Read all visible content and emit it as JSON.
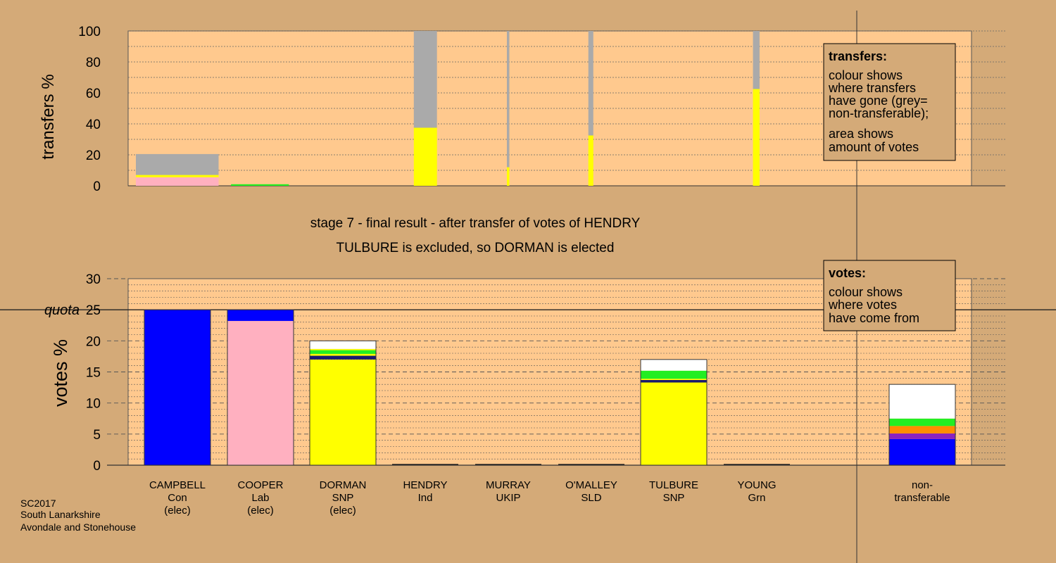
{
  "colors": {
    "background": "#d4aa78",
    "plot_background": "#ffc98e",
    "Con": "#0000ff",
    "Lab": "#ffb0c0",
    "SNP": "#ffff00",
    "Ind": "#1a1a6e",
    "Grn": "#22ee22",
    "UKIP": "#8b22c0",
    "SLD": "#ff8c00",
    "non_transferable": "#aaaaaa",
    "unknown": "#ffffff"
  },
  "titles": {
    "stage": "stage 7 - final result - after transfer of votes of HENDRY",
    "result": "TULBURE is excluded, so DORMAN is elected"
  },
  "legend_transfers": {
    "title": "transfers:",
    "lines": [
      "colour shows",
      "where transfers",
      "have gone (grey=",
      "non-transferable);",
      "area shows",
      "amount of votes"
    ]
  },
  "legend_votes": {
    "title": "votes:",
    "lines": [
      "colour shows",
      "where votes",
      "have come from"
    ]
  },
  "footer": {
    "line1": "SC2017",
    "line2": "South Lanarkshire",
    "line3": "Avondale and Stonehouse"
  },
  "quota_label": "quota",
  "candidates": [
    {
      "name": "CAMPBELL",
      "party": "Con",
      "status": "(elec)"
    },
    {
      "name": "COOPER",
      "party": "Lab",
      "status": "(elec)"
    },
    {
      "name": "DORMAN",
      "party": "SNP",
      "status": "(elec)"
    },
    {
      "name": "HENDRY",
      "party": "Ind",
      "status": ""
    },
    {
      "name": "MURRAY",
      "party": "UKIP",
      "status": ""
    },
    {
      "name": "O'MALLEY",
      "party": "SLD",
      "status": ""
    },
    {
      "name": "TULBURE",
      "party": "SNP",
      "status": ""
    },
    {
      "name": "YOUNG",
      "party": "Grn",
      "status": ""
    },
    {
      "name": "non-",
      "party": "transferable",
      "status": ""
    }
  ],
  "chart_data": [
    {
      "type": "bar",
      "ylabel": "transfers %",
      "ylim": [
        0,
        100
      ],
      "yticks": [
        0,
        20,
        40,
        60,
        80,
        100
      ],
      "grid": true,
      "legend": "top-right",
      "bars": [
        {
          "center": 0.5,
          "width": 1.0,
          "segments": [
            {
              "key": "Lab",
              "value": 5.5
            },
            {
              "key": "SNP",
              "value": 1.5
            },
            {
              "key": "non_transferable",
              "value": 13.5
            }
          ]
        },
        {
          "center": 1.5,
          "width": 0.7,
          "segments": [
            {
              "key": "Grn",
              "value": 1.0
            }
          ]
        },
        {
          "center": 3.5,
          "width": 0.28,
          "segments": [
            {
              "key": "SNP",
              "value": 37.5
            },
            {
              "key": "non_transferable",
              "value": 62.5
            }
          ]
        },
        {
          "center": 4.5,
          "width": 0.03,
          "segments": [
            {
              "key": "SNP",
              "value": 12
            },
            {
              "key": "non_transferable",
              "value": 88
            }
          ]
        },
        {
          "center": 5.5,
          "width": 0.06,
          "segments": [
            {
              "key": "SNP",
              "value": 32.5
            },
            {
              "key": "non_transferable",
              "value": 67.5
            }
          ]
        },
        {
          "center": 7.5,
          "width": 0.08,
          "segments": [
            {
              "key": "SNP",
              "value": 62.5
            },
            {
              "key": "non_transferable",
              "value": 37.5
            }
          ]
        }
      ]
    },
    {
      "type": "bar",
      "ylabel": "votes %",
      "ylim": [
        0,
        30
      ],
      "yticks": [
        0,
        5,
        10,
        15,
        20,
        25,
        30
      ],
      "quota": 25,
      "grid": true,
      "legend": "top-right",
      "categories": [
        "CAMPBELL",
        "COOPER",
        "DORMAN",
        "HENDRY",
        "MURRAY",
        "O'MALLEY",
        "TULBURE",
        "YOUNG",
        "non-transferable"
      ],
      "stacks": [
        [
          {
            "key": "Con",
            "value": 25
          }
        ],
        [
          {
            "key": "Lab",
            "value": 23.2
          },
          {
            "key": "Con",
            "value": 1.8
          }
        ],
        [
          {
            "key": "SNP",
            "value": 17.0
          },
          {
            "key": "Ind",
            "value": 0.6
          },
          {
            "key": "SNP",
            "value": 0.3
          },
          {
            "key": "Grn",
            "value": 0.6
          },
          {
            "key": "SNP",
            "value": 0.2
          },
          {
            "key": "unknown",
            "value": 1.3
          }
        ],
        [],
        [],
        [],
        [
          {
            "key": "SNP",
            "value": 13.3
          },
          {
            "key": "Ind",
            "value": 0.4
          },
          {
            "key": "SNP",
            "value": 0.2
          },
          {
            "key": "Grn",
            "value": 1.3
          },
          {
            "key": "unknown",
            "value": 1.8
          }
        ],
        [],
        [
          {
            "key": "Con",
            "value": 4.2
          },
          {
            "key": "UKIP",
            "value": 0.9
          },
          {
            "key": "SLD",
            "value": 1.2
          },
          {
            "key": "Grn",
            "value": 1.2
          },
          {
            "key": "unknown",
            "value": 5.5
          }
        ]
      ]
    }
  ]
}
